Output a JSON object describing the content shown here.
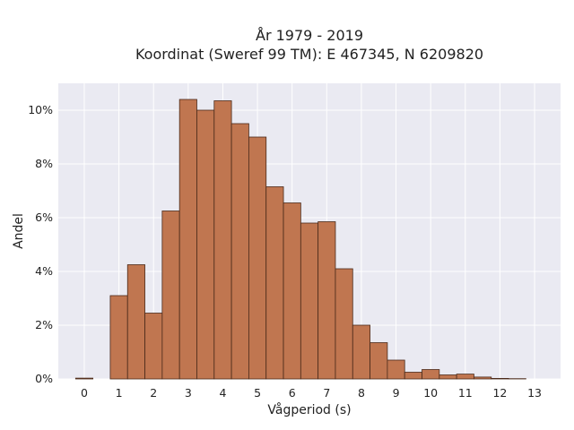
{
  "chart_data": {
    "type": "bar",
    "title": "År 1979 - 2019",
    "subtitle": "Koordinat (Sweref 99 TM): E 467345, N 6209820",
    "xlabel": "Vågperiod (s)",
    "ylabel": "Andel",
    "xlim": [
      -0.75,
      13.75
    ],
    "ylim": [
      0,
      0.11
    ],
    "x_ticks": [
      0,
      1,
      2,
      3,
      4,
      5,
      6,
      7,
      8,
      9,
      10,
      11,
      12,
      13
    ],
    "y_ticks": [
      0,
      0.02,
      0.04,
      0.06,
      0.08,
      0.1
    ],
    "y_tick_labels": [
      "0%",
      "2%",
      "4%",
      "6%",
      "8%",
      "10%"
    ],
    "grid": true,
    "bin_width": 0.5,
    "bins_start": [
      -0.25,
      0.25,
      0.75,
      1.25,
      1.75,
      2.25,
      2.75,
      3.25,
      3.75,
      4.25,
      4.75,
      5.25,
      5.75,
      6.25,
      6.75,
      7.25,
      7.75,
      8.25,
      8.75,
      9.25,
      9.75,
      10.25,
      10.75,
      11.25,
      11.75,
      12.25,
      12.75
    ],
    "values": [
      0.0003,
      0.0,
      0.031,
      0.0425,
      0.0245,
      0.0625,
      0.104,
      0.1,
      0.1035,
      0.095,
      0.09,
      0.0715,
      0.0655,
      0.058,
      0.0585,
      0.041,
      0.02,
      0.0135,
      0.007,
      0.0025,
      0.0035,
      0.0015,
      0.0018,
      0.0007,
      0.0002,
      0.0001,
      0.0
    ],
    "colors": {
      "bar_fill": "#c07650",
      "bar_edge": "#4a2a1a",
      "plot_bg": "#eaeaf2",
      "grid": "#ffffff"
    }
  }
}
